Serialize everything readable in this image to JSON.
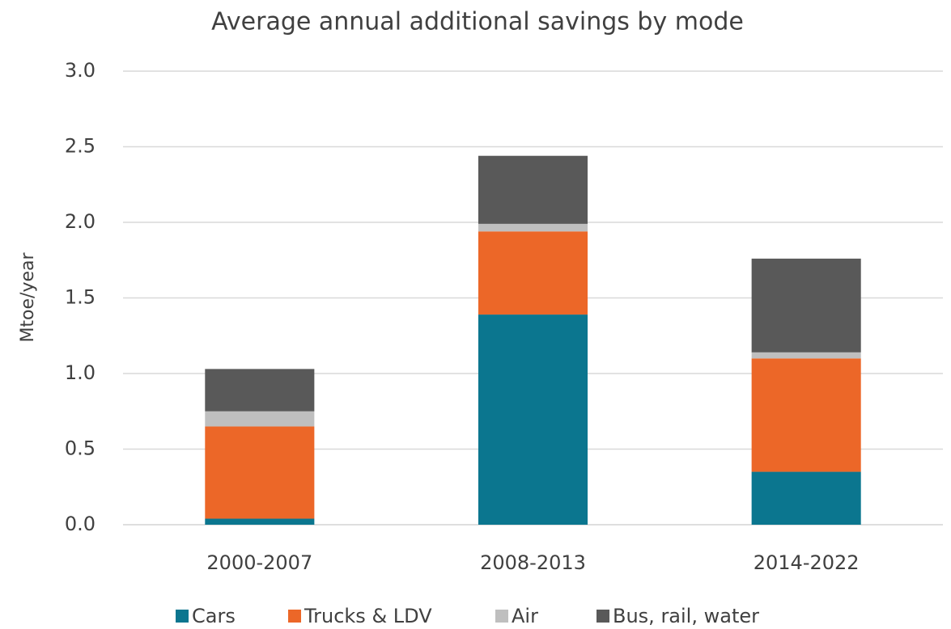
{
  "chart_data": {
    "type": "stacked_bar",
    "title": "Average annual additional savings by mode",
    "y_label": "Mtoe/year",
    "categories": [
      "2000-2007",
      "2008-2013",
      "2014-2022"
    ],
    "series": [
      {
        "name": "Cars",
        "color": "#0b768f",
        "values": [
          0.04,
          1.39,
          0.35
        ]
      },
      {
        "name": "Trucks & LDV",
        "color": "#ec6728",
        "values": [
          0.61,
          0.55,
          0.75
        ]
      },
      {
        "name": "Air",
        "color": "#bfbfbf",
        "values": [
          0.1,
          0.05,
          0.04
        ]
      },
      {
        "name": "Bus, rail, water",
        "color": "#595959",
        "values": [
          0.28,
          0.45,
          0.62
        ]
      }
    ],
    "ylim": [
      0,
      3
    ],
    "yticks": [
      {
        "value": 0,
        "label": "0.0"
      },
      0.5,
      {
        "value": 1,
        "label": "1.0"
      },
      1.5,
      {
        "value": 2,
        "label": "2.0"
      },
      2.5,
      {
        "value": 3,
        "label": "3.0"
      }
    ],
    "grid": true,
    "legend": "bottom"
  }
}
